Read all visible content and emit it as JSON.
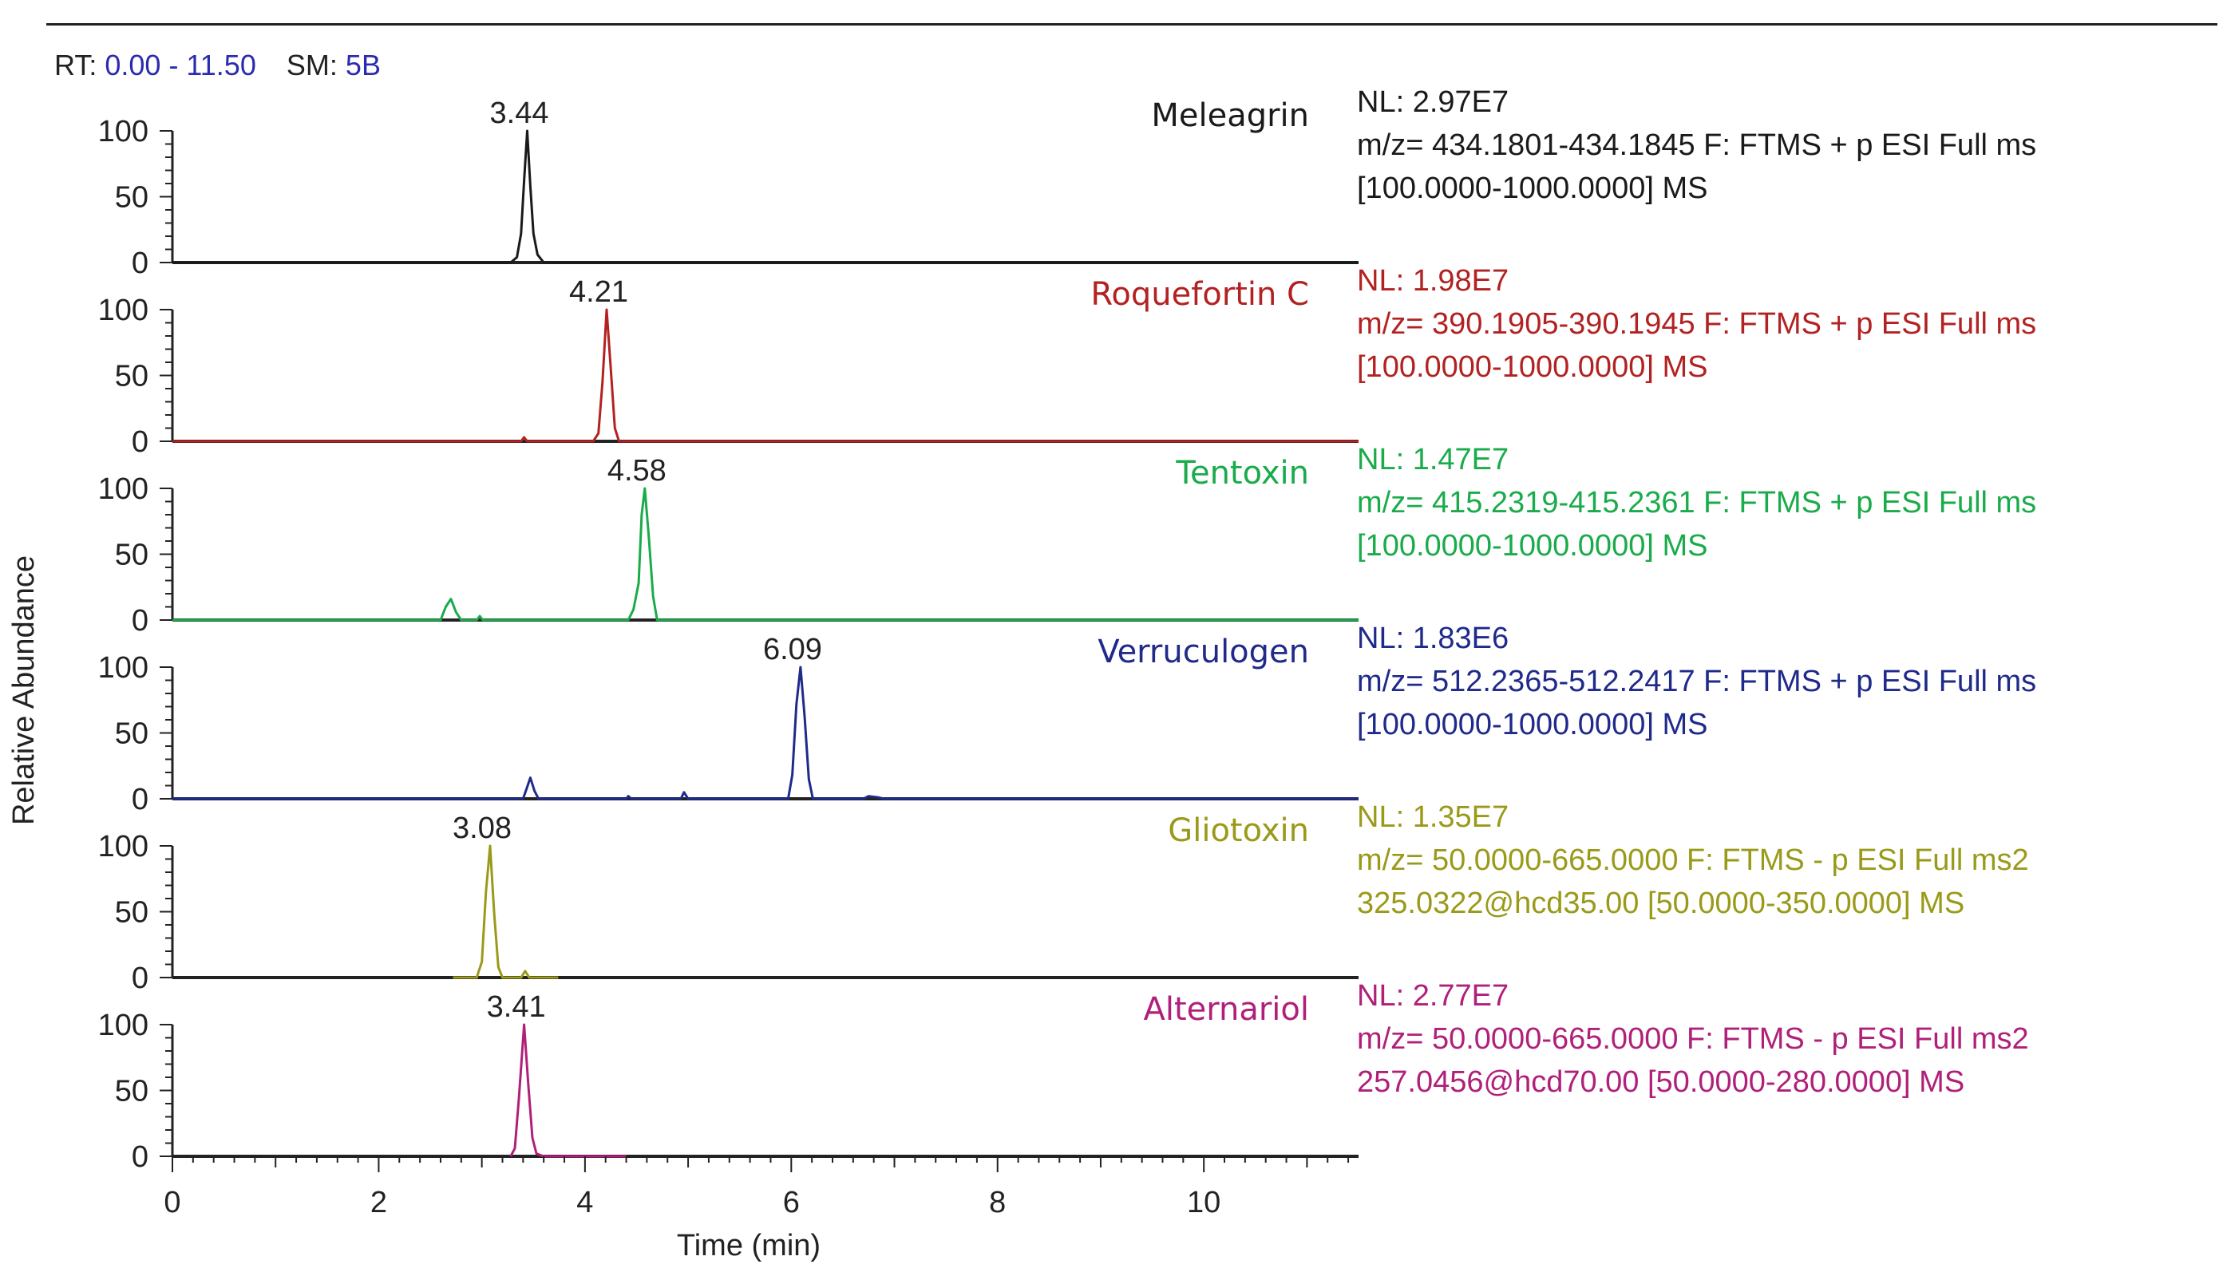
{
  "header": {
    "rt_label": "RT:",
    "rt_range": "0.00 - 11.50",
    "sm_label": "SM:",
    "sm_value": "5B"
  },
  "colors": {
    "header_value": "#2b2bb0",
    "axis": "#222222"
  },
  "chart_data": {
    "type": "line",
    "title": "",
    "xlabel": "Time (min)",
    "ylabel": "Relative Abundance",
    "xlim": [
      0,
      11.5
    ],
    "ylim": [
      0,
      100
    ],
    "x_ticks": [
      0,
      2,
      4,
      6,
      8,
      10
    ],
    "y_ticks": [
      0,
      50,
      100
    ],
    "series": [
      {
        "name": "Meleagrin",
        "color": "#1a1a1a",
        "peak_label": "3.44",
        "info": [
          "NL: 2.97E7",
          "m/z= 434.1801-434.1845 F: FTMS + p ESI Full ms",
          "[100.0000-1000.0000]  MS"
        ],
        "points": [
          [
            0,
            0
          ],
          [
            3.28,
            0
          ],
          [
            3.34,
            4
          ],
          [
            3.38,
            22
          ],
          [
            3.41,
            62
          ],
          [
            3.44,
            100
          ],
          [
            3.47,
            58
          ],
          [
            3.5,
            22
          ],
          [
            3.54,
            6
          ],
          [
            3.6,
            0
          ],
          [
            11.5,
            0
          ]
        ]
      },
      {
        "name": "Roquefortin C",
        "color": "#b22222",
        "peak_label": "4.21",
        "info": [
          "NL: 1.98E7",
          "m/z= 390.1905-390.1945 F: FTMS + p ESI Full ms",
          "[100.0000-1000.0000]  MS"
        ],
        "points": [
          [
            0,
            0
          ],
          [
            3.38,
            0
          ],
          [
            3.41,
            3
          ],
          [
            3.44,
            0
          ],
          [
            4.08,
            0
          ],
          [
            4.13,
            6
          ],
          [
            4.17,
            45
          ],
          [
            4.21,
            100
          ],
          [
            4.25,
            55
          ],
          [
            4.29,
            10
          ],
          [
            4.33,
            0
          ],
          [
            11.5,
            0
          ]
        ]
      },
      {
        "name": "Tentoxin",
        "color": "#1aab4a",
        "peak_label": "4.58",
        "info": [
          "NL: 1.47E7",
          "m/z= 415.2319-415.2361 F: FTMS + p ESI Full ms",
          "[100.0000-1000.0000]  MS"
        ],
        "points": [
          [
            0,
            0
          ],
          [
            2.6,
            0
          ],
          [
            2.65,
            10
          ],
          [
            2.7,
            16
          ],
          [
            2.75,
            6
          ],
          [
            2.8,
            0
          ],
          [
            2.95,
            0
          ],
          [
            2.98,
            3
          ],
          [
            3.01,
            0
          ],
          [
            4.42,
            0
          ],
          [
            4.47,
            8
          ],
          [
            4.52,
            28
          ],
          [
            4.55,
            80
          ],
          [
            4.58,
            100
          ],
          [
            4.62,
            62
          ],
          [
            4.66,
            18
          ],
          [
            4.7,
            0
          ],
          [
            11.5,
            0
          ]
        ]
      },
      {
        "name": "Verruculogen",
        "color": "#1f2a8a",
        "peak_label": "6.09",
        "info": [
          "NL: 1.83E6",
          "m/z= 512.2365-512.2417 F: FTMS + p ESI Full ms",
          "[100.0000-1000.0000]  MS"
        ],
        "points": [
          [
            0,
            0
          ],
          [
            3.4,
            0
          ],
          [
            3.44,
            9
          ],
          [
            3.47,
            16
          ],
          [
            3.51,
            6
          ],
          [
            3.55,
            0
          ],
          [
            4.4,
            0
          ],
          [
            4.42,
            2
          ],
          [
            4.45,
            0
          ],
          [
            4.93,
            0
          ],
          [
            4.96,
            5
          ],
          [
            5.0,
            0
          ],
          [
            5.97,
            0
          ],
          [
            6.01,
            18
          ],
          [
            6.05,
            72
          ],
          [
            6.09,
            100
          ],
          [
            6.13,
            62
          ],
          [
            6.17,
            15
          ],
          [
            6.21,
            0
          ],
          [
            6.7,
            0
          ],
          [
            6.75,
            2
          ],
          [
            6.85,
            1
          ],
          [
            6.9,
            0
          ],
          [
            11.5,
            0
          ]
        ]
      },
      {
        "name": "Gliotoxin",
        "color": "#9a9a1a",
        "peak_label": "3.08",
        "info": [
          "NL: 1.35E7",
          "m/z= 50.0000-665.0000 F: FTMS - p ESI Full ms2",
          "325.0322@hcd35.00 [50.0000-350.0000]  MS"
        ],
        "points": [
          [
            2.72,
            0
          ],
          [
            2.95,
            0
          ],
          [
            3.0,
            12
          ],
          [
            3.04,
            65
          ],
          [
            3.08,
            100
          ],
          [
            3.12,
            48
          ],
          [
            3.16,
            8
          ],
          [
            3.2,
            0
          ],
          [
            3.38,
            0
          ],
          [
            3.42,
            5
          ],
          [
            3.46,
            0
          ],
          [
            3.74,
            0
          ]
        ]
      },
      {
        "name": "Alternariol",
        "color": "#b0207a",
        "peak_label": "3.41",
        "info": [
          "NL: 2.77E7",
          "m/z= 50.0000-665.0000 F: FTMS - p ESI Full ms2",
          "257.0456@hcd70.00 [50.0000-280.0000]  MS"
        ],
        "points": [
          [
            3.28,
            0
          ],
          [
            3.32,
            6
          ],
          [
            3.36,
            45
          ],
          [
            3.41,
            100
          ],
          [
            3.45,
            55
          ],
          [
            3.49,
            14
          ],
          [
            3.53,
            2
          ],
          [
            3.6,
            0
          ],
          [
            4.4,
            0
          ]
        ]
      }
    ]
  }
}
